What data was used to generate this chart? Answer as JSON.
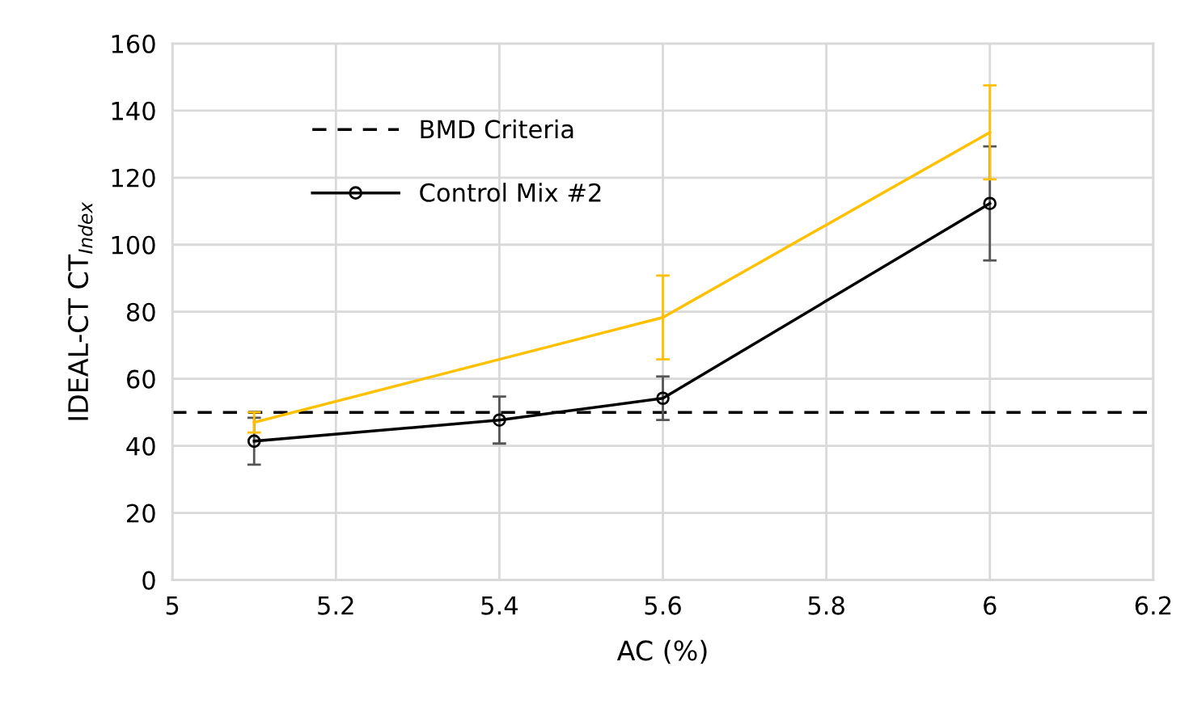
{
  "chart_data": {
    "type": "line",
    "xlabel": "AC (%)",
    "ylabel": "IDEAL-CT CT$_{Index}$",
    "xlim": [
      5,
      6.2
    ],
    "xticks": [
      5,
      5.2,
      5.4,
      5.6,
      5.8,
      6,
      6.2
    ],
    "ylim": [
      0,
      160
    ],
    "yticks": [
      0,
      20,
      40,
      60,
      80,
      100,
      120,
      140,
      160
    ],
    "grid": true,
    "legend": "top left",
    "ref_lines": [
      {
        "axis": "y",
        "value": 50,
        "label": "BMD Criteria",
        "color": "#000000",
        "line_style": "dashed"
      }
    ],
    "series": [
      {
        "name": "Control Mix #2",
        "color": "#000000",
        "marker": "circle",
        "x": [
          5.1,
          5.4,
          5.6,
          6
        ],
        "values": [
          41.4,
          47.7,
          54.2,
          112.3
        ],
        "errors": [
          7,
          7,
          6.5,
          17
        ]
      },
      {
        "color": "#ffc000",
        "marker": "none",
        "x": [
          5.1,
          5.4,
          5.6,
          6
        ],
        "values": [
          47,
          65.8,
          78.3,
          133.5
        ],
        "errors": [
          3,
          null,
          12.5,
          14
        ]
      }
    ]
  }
}
